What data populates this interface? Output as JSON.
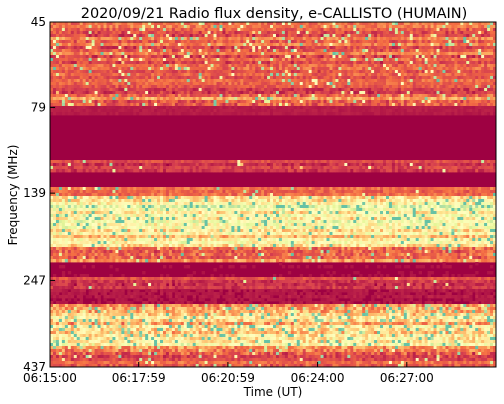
{
  "chart_data": {
    "type": "heatmap",
    "title": "2020/09/21  Radio flux density, e-CALLISTO (HUMAIN)",
    "xlabel": "Time (UT)",
    "ylabel": "Frequency (MHz)",
    "x_ticks": [
      "06:15:00",
      "06:17:59",
      "06:20:59",
      "06:24:00",
      "06:27:00"
    ],
    "y_ticks": [
      "45",
      "79",
      "139",
      "247",
      "437"
    ],
    "x_range": [
      "06:15:00",
      "06:30:00"
    ],
    "y_range": [
      45,
      437
    ],
    "y_scale": "log",
    "y_inverted": true,
    "colormap": "Spectral",
    "colormap_stops": [
      "#9e0142",
      "#d53e4f",
      "#f46d43",
      "#fdae61",
      "#fee08b",
      "#ffffbf",
      "#e6f598",
      "#abdda4",
      "#66c2a5"
    ],
    "bands": [
      {
        "fmin": 45,
        "fmax": 62,
        "level": 0.22,
        "var": 0.18,
        "spikes": 0.08
      },
      {
        "fmin": 62,
        "fmax": 72,
        "level": 0.18,
        "var": 0.15,
        "spikes": 0.05
      },
      {
        "fmin": 72,
        "fmax": 79,
        "level": 0.28,
        "var": 0.22,
        "spikes": 0.06
      },
      {
        "fmin": 79,
        "fmax": 83,
        "level": 0.05,
        "var": 0.03,
        "spikes": 0.0
      },
      {
        "fmin": 83,
        "fmax": 112,
        "level": 0.0,
        "var": 0.02,
        "spikes": 0.0
      },
      {
        "fmin": 112,
        "fmax": 121,
        "level": 0.15,
        "var": 0.12,
        "spikes": 0.03
      },
      {
        "fmin": 121,
        "fmax": 134,
        "level": 0.01,
        "var": 0.02,
        "spikes": 0.0
      },
      {
        "fmin": 134,
        "fmax": 141,
        "level": 0.2,
        "var": 0.15,
        "spikes": 0.04
      },
      {
        "fmin": 141,
        "fmax": 175,
        "level": 0.62,
        "var": 0.3,
        "spikes": 0.1
      },
      {
        "fmin": 175,
        "fmax": 200,
        "level": 0.5,
        "var": 0.28,
        "spikes": 0.08
      },
      {
        "fmin": 200,
        "fmax": 220,
        "level": 0.3,
        "var": 0.22,
        "spikes": 0.05
      },
      {
        "fmin": 220,
        "fmax": 240,
        "level": 0.02,
        "var": 0.03,
        "spikes": 0.0
      },
      {
        "fmin": 240,
        "fmax": 260,
        "level": 0.15,
        "var": 0.12,
        "spikes": 0.02
      },
      {
        "fmin": 260,
        "fmax": 290,
        "level": 0.05,
        "var": 0.05,
        "spikes": 0.0
      },
      {
        "fmin": 290,
        "fmax": 330,
        "level": 0.42,
        "var": 0.3,
        "spikes": 0.12
      },
      {
        "fmin": 330,
        "fmax": 380,
        "level": 0.52,
        "var": 0.32,
        "spikes": 0.14
      },
      {
        "fmin": 380,
        "fmax": 405,
        "level": 0.3,
        "var": 0.25,
        "spikes": 0.06
      },
      {
        "fmin": 405,
        "fmax": 425,
        "level": 0.18,
        "var": 0.15,
        "spikes": 0.04
      },
      {
        "fmin": 425,
        "fmax": 437,
        "level": 0.25,
        "var": 0.2,
        "spikes": 0.05
      }
    ]
  }
}
